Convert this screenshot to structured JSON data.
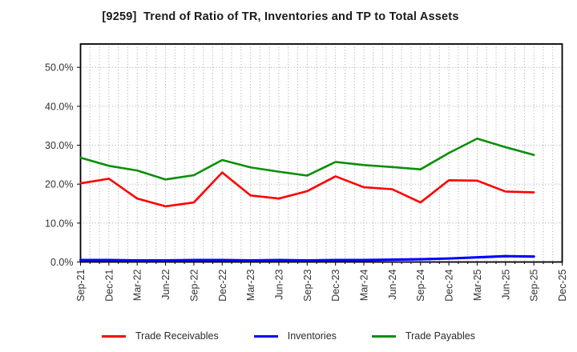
{
  "chart_data": {
    "type": "line",
    "title": "[9259]  Trend of Ratio of TR, Inventories and TP to Total Assets",
    "categories": [
      "Sep-21",
      "Dec-21",
      "Mar-22",
      "Jun-22",
      "Sep-22",
      "Dec-22",
      "Mar-23",
      "Jun-23",
      "Sep-23",
      "Dec-23",
      "Mar-24",
      "Jun-24",
      "Sep-24",
      "Dec-24",
      "Mar-25",
      "Jun-25",
      "Sep-25",
      "Dec-25"
    ],
    "series": [
      {
        "name": "Trade Receivables",
        "color": "#ff0000",
        "values": [
          20.2,
          21.4,
          16.3,
          14.3,
          15.3,
          23.0,
          17.1,
          16.3,
          18.2,
          22.0,
          19.2,
          18.7,
          15.3,
          21.0,
          20.9,
          18.1,
          17.9
        ]
      },
      {
        "name": "Inventories",
        "color": "#0000ff",
        "values": [
          0.5,
          0.5,
          0.4,
          0.4,
          0.5,
          0.5,
          0.4,
          0.5,
          0.4,
          0.5,
          0.5,
          0.6,
          0.7,
          0.9,
          1.2,
          1.5,
          1.4
        ]
      },
      {
        "name": "Trade Payables",
        "color": "#0a8f0a",
        "values": [
          26.8,
          24.7,
          23.5,
          21.2,
          22.3,
          26.2,
          24.3,
          23.2,
          22.2,
          25.7,
          24.9,
          24.4,
          23.8,
          28.0,
          31.7,
          29.5,
          27.5
        ]
      }
    ],
    "ylim": [
      0,
      56
    ],
    "yticks": {
      "values": [
        0,
        10,
        20,
        30,
        40,
        50
      ],
      "labels": [
        "0.0%",
        "10.0%",
        "20.0%",
        "30.0%",
        "40.0%",
        "50.0%"
      ]
    },
    "grid": "dotted",
    "x_minor_per_interval": 3,
    "legend_position": "bottom"
  }
}
